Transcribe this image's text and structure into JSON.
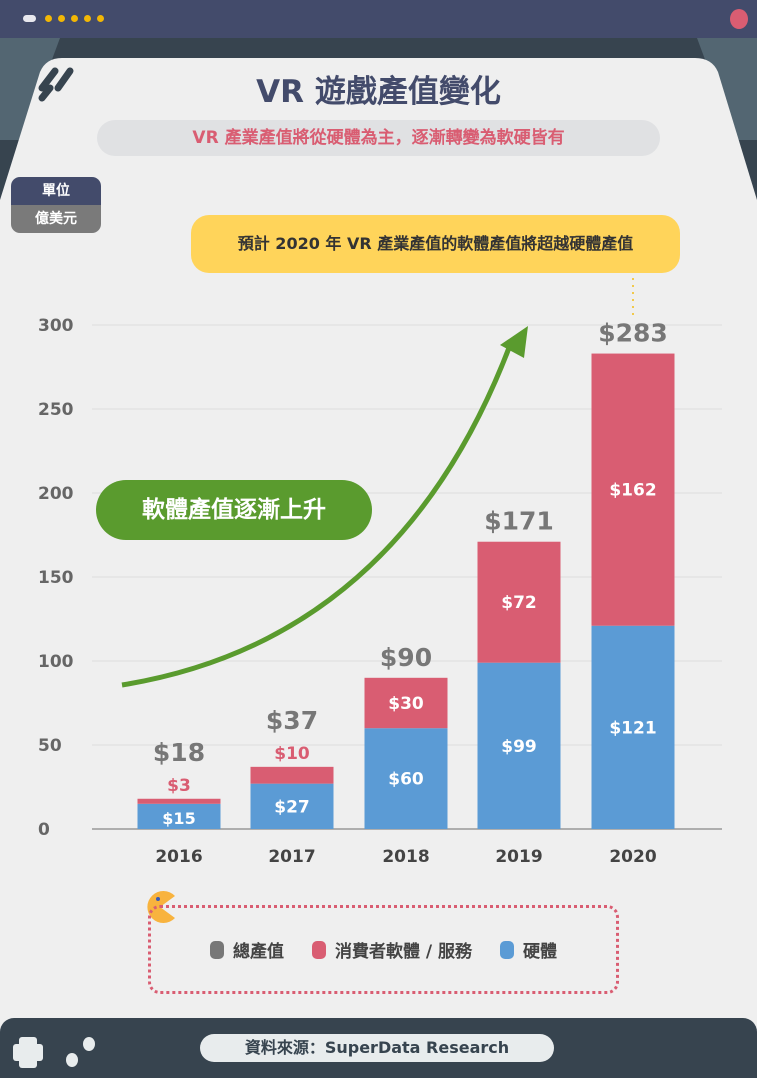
{
  "header": {
    "title": "VR 遊戲產值變化",
    "subtitle": "VR 產業產值將從硬體為主，逐漸轉變為軟硬皆有"
  },
  "unit": {
    "label": "單位",
    "value": "億美元"
  },
  "callout": "預計 2020 年 VR 產業產值的軟體產值將超越硬體產值",
  "trend_label": "軟體產值逐漸上升",
  "colors": {
    "total": "#777777",
    "software": "#d95d72",
    "hardware": "#5b9bd5",
    "trend": "#5a9b2e",
    "accent": "#434b6b"
  },
  "chart_data": {
    "type": "bar",
    "stacked": true,
    "categories": [
      "2016",
      "2017",
      "2018",
      "2019",
      "2020"
    ],
    "series": [
      {
        "name": "硬體",
        "values": [
          15,
          27,
          60,
          99,
          121
        ],
        "labels": [
          "$15",
          "$27",
          "$60",
          "$99",
          "$121"
        ]
      },
      {
        "name": "消費者軟體 / 服務",
        "values": [
          3,
          10,
          30,
          72,
          162
        ],
        "labels": [
          "$3",
          "$10",
          "$30",
          "$72",
          "$162"
        ]
      }
    ],
    "totals": {
      "name": "總產值",
      "values": [
        18,
        37,
        90,
        171,
        283
      ],
      "labels": [
        "$18",
        "$37",
        "$90",
        "$171",
        "$283"
      ]
    },
    "yticks": [
      "0",
      "50",
      "100",
      "150",
      "200",
      "250",
      "300"
    ],
    "ylim": [
      0,
      300
    ],
    "grid": true,
    "legend": "bottom"
  },
  "legend": [
    {
      "label": "總產值"
    },
    {
      "label": "消費者軟體 / 服務"
    },
    {
      "label": "硬體"
    }
  ],
  "footer": {
    "source": "資料來源：SuperData Research"
  }
}
